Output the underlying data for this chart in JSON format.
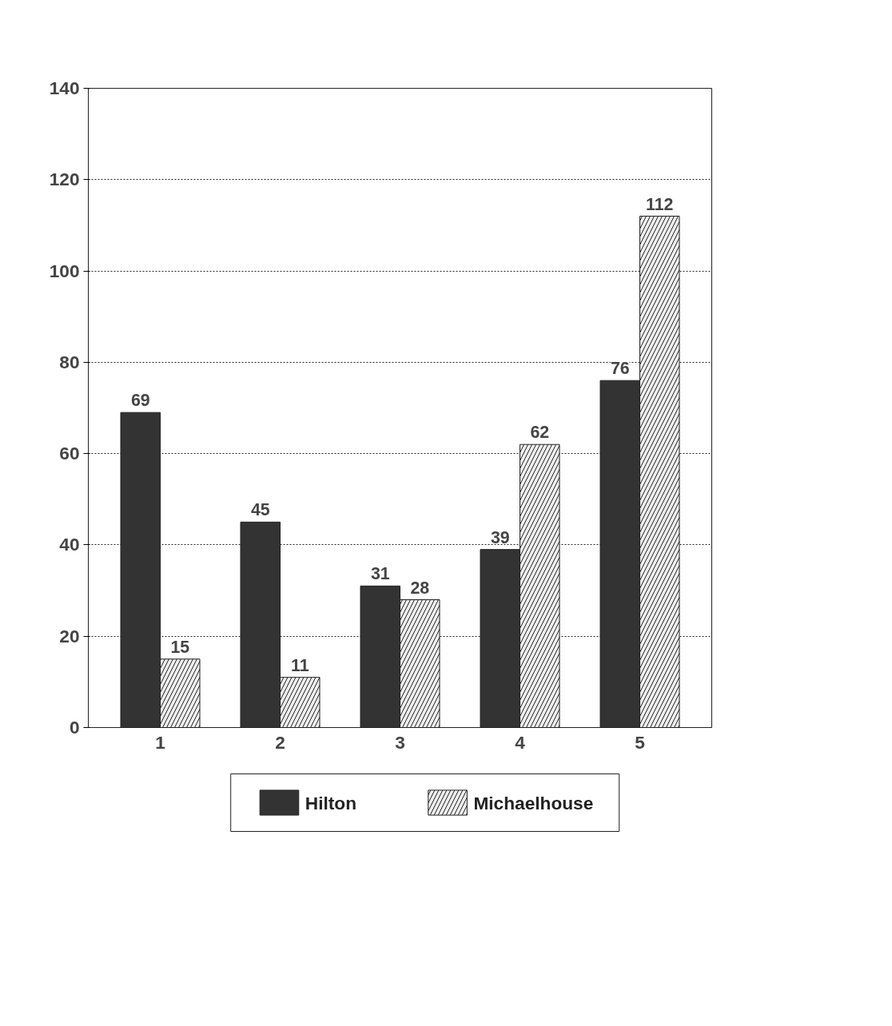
{
  "chart_data": {
    "type": "bar",
    "categories": [
      "1",
      "2",
      "3",
      "4",
      "5"
    ],
    "series": [
      {
        "name": "Hilton",
        "color": "#333333",
        "values": [
          69,
          45,
          31,
          39,
          76
        ]
      },
      {
        "name": "Michaelhouse",
        "color": "#eeeeee",
        "values": [
          15,
          11,
          28,
          62,
          112
        ]
      }
    ],
    "ylim": [
      0,
      140
    ],
    "yticks": [
      0,
      20,
      40,
      60,
      80,
      100,
      120,
      140
    ],
    "grid": "y",
    "legend": "bottom",
    "data_labels": true
  }
}
